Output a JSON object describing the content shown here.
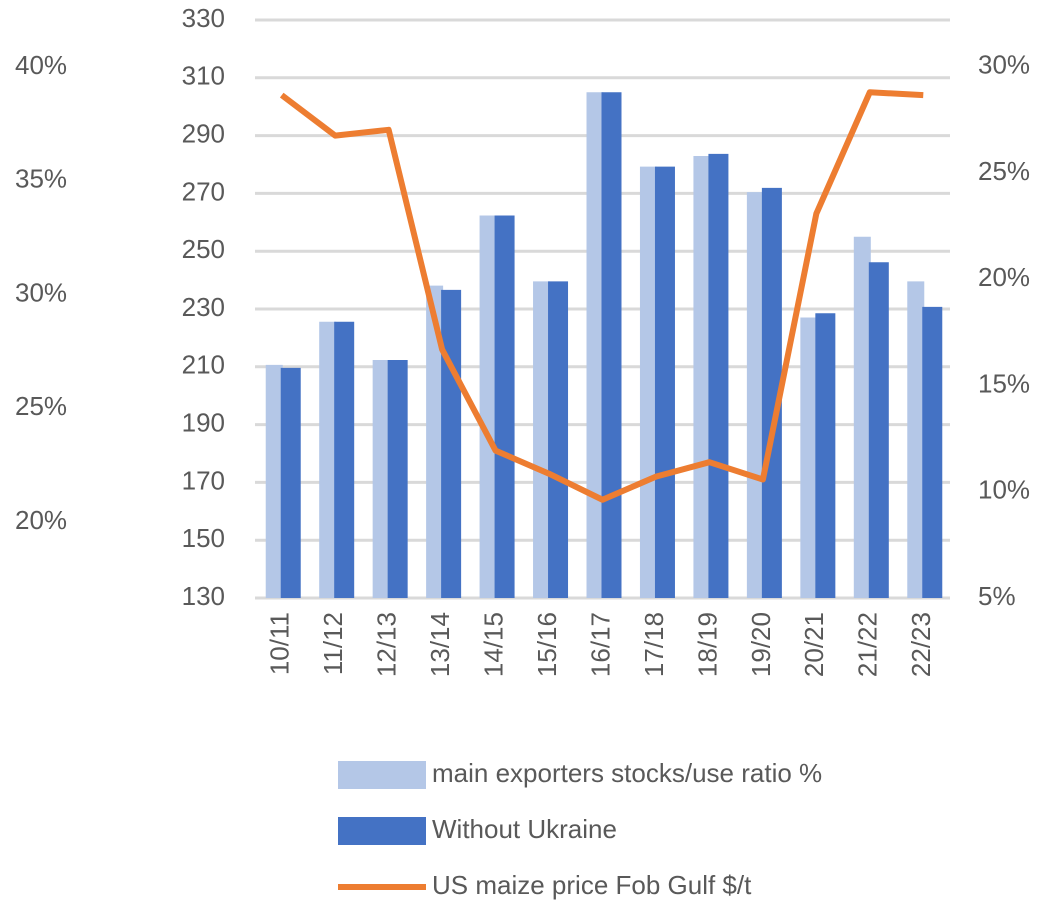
{
  "chart_data": {
    "type": "bar",
    "categories": [
      "10/11",
      "11/12",
      "12/13",
      "13/14",
      "14/15",
      "15/16",
      "16/17",
      "17/18",
      "18/19",
      "19/20",
      "20/21",
      "21/22",
      "22/23"
    ],
    "series": [
      {
        "name": "main exporters stocks/use ratio %",
        "color": "#b4c7e7",
        "axis": "y2",
        "type": "bar",
        "values": [
          15.97,
          18.0,
          16.2,
          19.7,
          23.0,
          19.9,
          28.8,
          25.3,
          25.8,
          24.1,
          18.2,
          22.0,
          19.9
        ]
      },
      {
        "name": "Without Ukraine",
        "color": "#4472c4",
        "axis": "y2",
        "type": "bar",
        "values": [
          15.83,
          18.0,
          16.2,
          19.5,
          23.0,
          19.9,
          28.8,
          25.3,
          25.9,
          24.3,
          18.4,
          20.8,
          18.7
        ]
      },
      {
        "name": "US maize price Fob Gulf $/t",
        "color": "#ed7d31",
        "axis": "y",
        "type": "line",
        "values": [
          304,
          290,
          292,
          216,
          181,
          173,
          164,
          172,
          177,
          171,
          263,
          305,
          304
        ]
      }
    ],
    "ylim": [
      130,
      330
    ],
    "yticks": [
      130,
      150,
      170,
      190,
      210,
      230,
      250,
      270,
      290,
      310,
      330
    ],
    "y2lim": [
      5,
      32.2
    ],
    "y2ticks": [
      {
        "value": 5,
        "label": "5%"
      },
      {
        "value": 10,
        "label": "10%"
      },
      {
        "value": 15,
        "label": "15%"
      },
      {
        "value": 20,
        "label": "20%"
      },
      {
        "value": 25,
        "label": "25%"
      },
      {
        "value": 30,
        "label": "30%"
      }
    ],
    "y3lim": [
      16.66,
      42.07
    ],
    "y3ticks": [
      {
        "value": 20,
        "label": "20%"
      },
      {
        "value": 25,
        "label": "25%"
      },
      {
        "value": 30,
        "label": "30%"
      },
      {
        "value": 35,
        "label": "35%"
      },
      {
        "value": 40,
        "label": "40%"
      }
    ],
    "grid": true
  }
}
